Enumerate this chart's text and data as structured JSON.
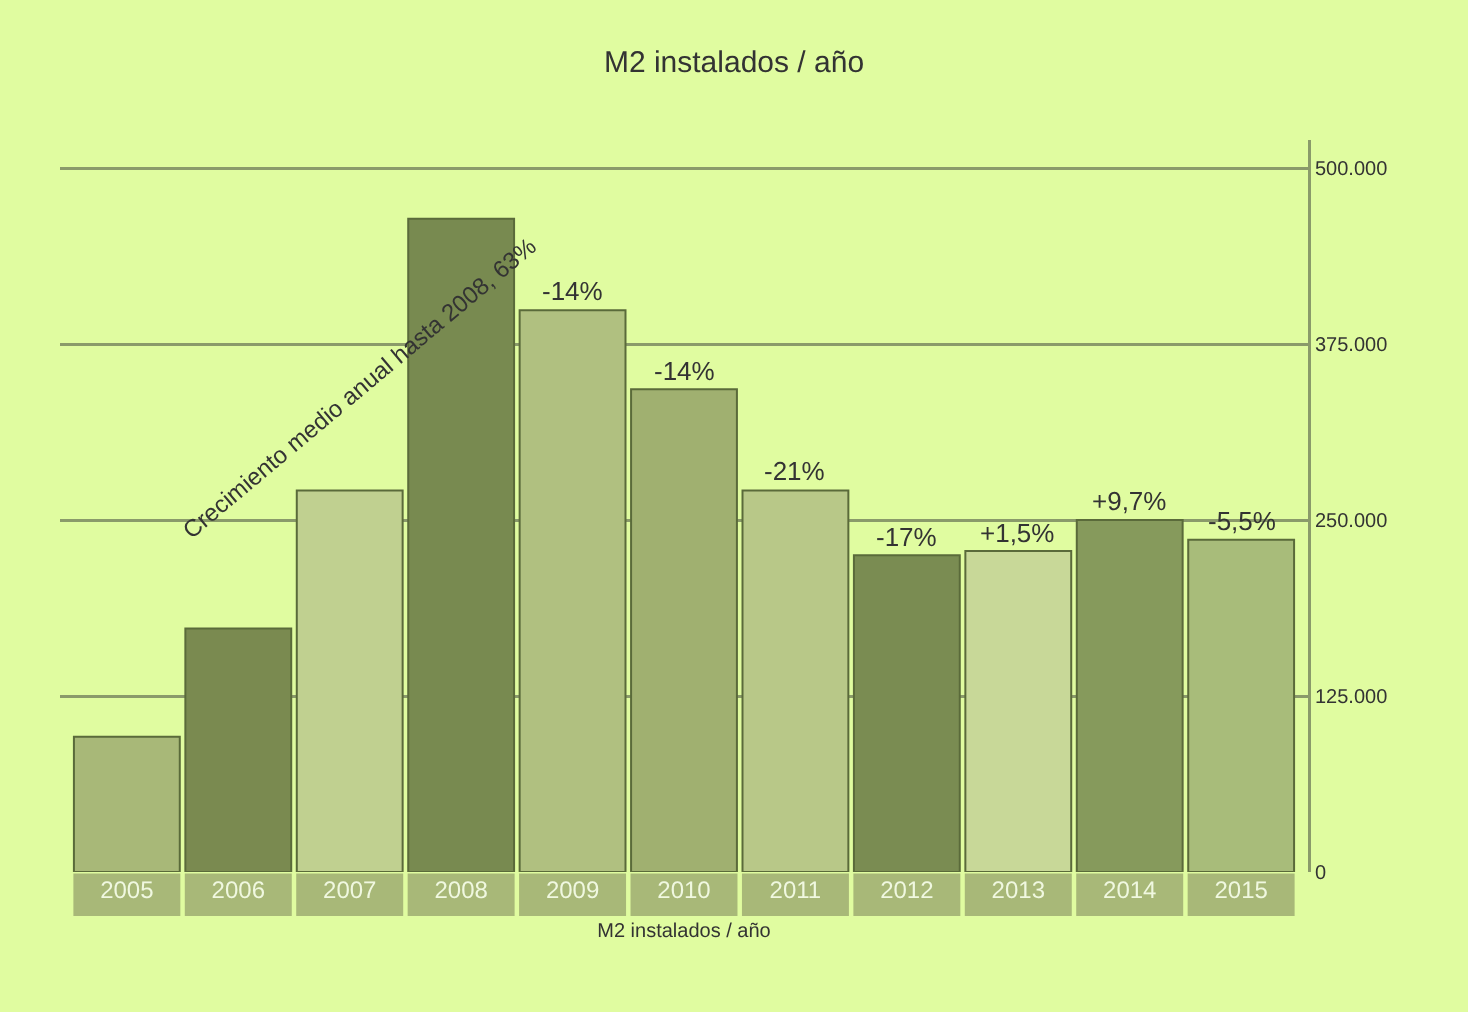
{
  "chart_data": {
    "type": "bar",
    "title": "M2 instalados / año",
    "xlabel": "M2 instalados / año",
    "categories": [
      "2005",
      "2006",
      "2007",
      "2008",
      "2009",
      "2010",
      "2011",
      "2012",
      "2013",
      "2014",
      "2015"
    ],
    "values": [
      96000,
      173000,
      271000,
      464000,
      399000,
      343000,
      271000,
      225000,
      228000,
      250000,
      236000
    ],
    "colors": [
      "#a8b878",
      "#7a8a50",
      "#c0d090",
      "#788a50",
      "#b0c080",
      "#a0b070",
      "#b8c888",
      "#7a8c52",
      "#c8d898",
      "#869a5c",
      "#a8bc7a"
    ],
    "ylim": [
      0,
      520000
    ],
    "yticks": [
      0,
      {
        "value": 125000,
        "label": "125.000"
      },
      {
        "value": 250000,
        "label": "250.000"
      },
      {
        "value": 375000,
        "label": "375.000"
      },
      {
        "value": 500000,
        "label": "500.000"
      }
    ],
    "grid": "y",
    "annotations": [
      "Crecimiento medio anual hasta 2008, 63%",
      {
        "text": "-14%",
        "x": "2009",
        "y": 399000
      },
      {
        "text": "-14%",
        "x": "2010",
        "y": 343000
      },
      {
        "text": "-21%",
        "x": "2011",
        "y": 271000
      },
      {
        "text": "-17%",
        "x": "2012",
        "y": 225000
      },
      {
        "text": "+1,5%",
        "x": "2013",
        "y": 228000
      },
      {
        "text": "+9,7%",
        "x": "2014",
        "y": 250000
      },
      {
        "text": "-5,5%",
        "x": "2015",
        "y": 236000
      }
    ]
  }
}
